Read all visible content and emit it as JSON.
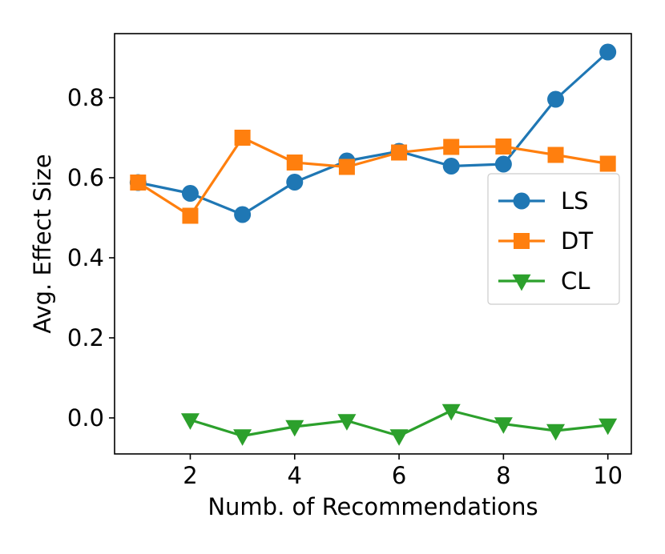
{
  "chart_data": {
    "type": "line",
    "title": "",
    "xlabel": "Numb. of Recommendations",
    "ylabel": "Avg. Effect Size",
    "xlim": [
      0.55,
      10.45
    ],
    "ylim": [
      -0.09,
      0.96
    ],
    "xticks": [
      2,
      4,
      6,
      8,
      10
    ],
    "xtick_labels": [
      "2",
      "4",
      "6",
      "8",
      "10"
    ],
    "yticks": [
      0.0,
      0.2,
      0.4,
      0.6,
      0.8
    ],
    "ytick_labels": [
      "0.0",
      "0.2",
      "0.4",
      "0.6",
      "0.8"
    ],
    "grid": false,
    "legend_position": "center-right",
    "series": [
      {
        "name": "LS",
        "color": "#1f77b4",
        "marker": "circle",
        "x": [
          1,
          2,
          3,
          4,
          5,
          6,
          7,
          8,
          9,
          10
        ],
        "y": [
          0.588,
          0.561,
          0.508,
          0.589,
          0.642,
          0.666,
          0.629,
          0.634,
          0.796,
          0.914
        ]
      },
      {
        "name": "DT",
        "color": "#ff7f0e",
        "marker": "square",
        "x": [
          1,
          2,
          3,
          4,
          5,
          6,
          7,
          8,
          9,
          10
        ],
        "y": [
          0.588,
          0.505,
          0.7,
          0.638,
          0.627,
          0.663,
          0.677,
          0.678,
          0.657,
          0.635
        ]
      },
      {
        "name": "CL",
        "color": "#2ca02c",
        "marker": "triangle-down",
        "x": [
          2,
          3,
          4,
          5,
          6,
          7,
          8,
          9,
          10
        ],
        "y": [
          -0.005,
          -0.045,
          -0.022,
          -0.007,
          -0.045,
          0.018,
          -0.015,
          -0.032,
          -0.018
        ]
      }
    ]
  }
}
